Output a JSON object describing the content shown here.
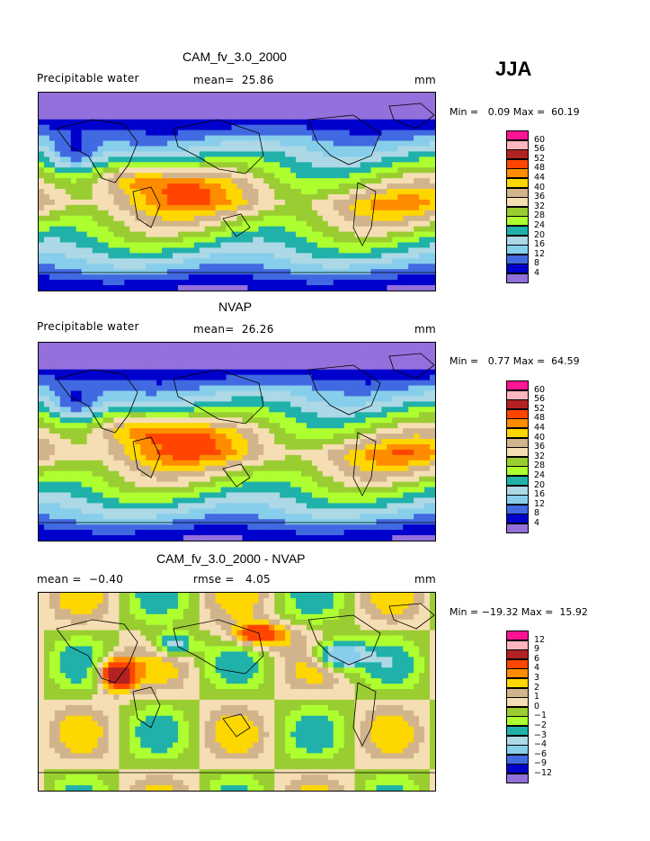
{
  "season": "JJA",
  "panels": [
    {
      "title": "CAM_fv_3.0_2000",
      "left_label": "Precipitable water",
      "center_label": "mean=  25.86",
      "unit": "mm",
      "minmax": "Min =   0.09 Max =  60.19",
      "colorbar_labels": [
        "60",
        "56",
        "52",
        "48",
        "44",
        "40",
        "36",
        "32",
        "28",
        "24",
        "20",
        "16",
        "12",
        "8",
        "4"
      ]
    },
    {
      "title": "NVAP",
      "left_label": "Precipitable water",
      "center_label": "mean=  26.26",
      "unit": "mm",
      "minmax": "Min =   0.77 Max =  64.59",
      "colorbar_labels": [
        "60",
        "56",
        "52",
        "48",
        "44",
        "40",
        "36",
        "32",
        "28",
        "24",
        "20",
        "16",
        "12",
        "8",
        "4"
      ]
    },
    {
      "title": "CAM_fv_3.0_2000 - NVAP",
      "left_label": "mean =  −0.40",
      "center_label": "rmse =   4.05",
      "unit": "mm",
      "minmax": "Min = −19.32 Max =  15.92",
      "colorbar_labels": [
        "12",
        "9",
        "6",
        "4",
        "3",
        "2",
        "1",
        "0",
        "−1",
        "−2",
        "−3",
        "−4",
        "−6",
        "−9",
        "−12"
      ]
    }
  ],
  "colors": {
    "levels_top_to_bottom": [
      "#ff1493",
      "#ffb6c1",
      "#b22222",
      "#ff4500",
      "#ff8c00",
      "#ffd700",
      "#d2b48c",
      "#f5deb3",
      "#9acd32",
      "#adff2f",
      "#20b2aa",
      "#add8e6",
      "#87ceeb",
      "#4169e1",
      "#0000cd",
      "#9370db"
    ]
  },
  "chart_data": [
    {
      "type": "heatmap",
      "title": "CAM_fv_3.0_2000",
      "field": "Precipitable water",
      "units": "mm",
      "mean": 25.86,
      "min": 0.09,
      "max": 60.19,
      "contour_levels": [
        4,
        8,
        12,
        16,
        20,
        24,
        28,
        32,
        36,
        40,
        44,
        48,
        52,
        56,
        60
      ]
    },
    {
      "type": "heatmap",
      "title": "NVAP",
      "field": "Precipitable water",
      "units": "mm",
      "mean": 26.26,
      "min": 0.77,
      "max": 64.59,
      "contour_levels": [
        4,
        8,
        12,
        16,
        20,
        24,
        28,
        32,
        36,
        40,
        44,
        48,
        52,
        56,
        60
      ]
    },
    {
      "type": "heatmap",
      "title": "CAM_fv_3.0_2000 - NVAP",
      "units": "mm",
      "mean": -0.4,
      "rmse": 4.05,
      "min": -19.32,
      "max": 15.92,
      "contour_levels": [
        -12,
        -9,
        -6,
        -4,
        -3,
        -2,
        -1,
        0,
        1,
        2,
        3,
        4,
        6,
        9,
        12
      ]
    }
  ]
}
